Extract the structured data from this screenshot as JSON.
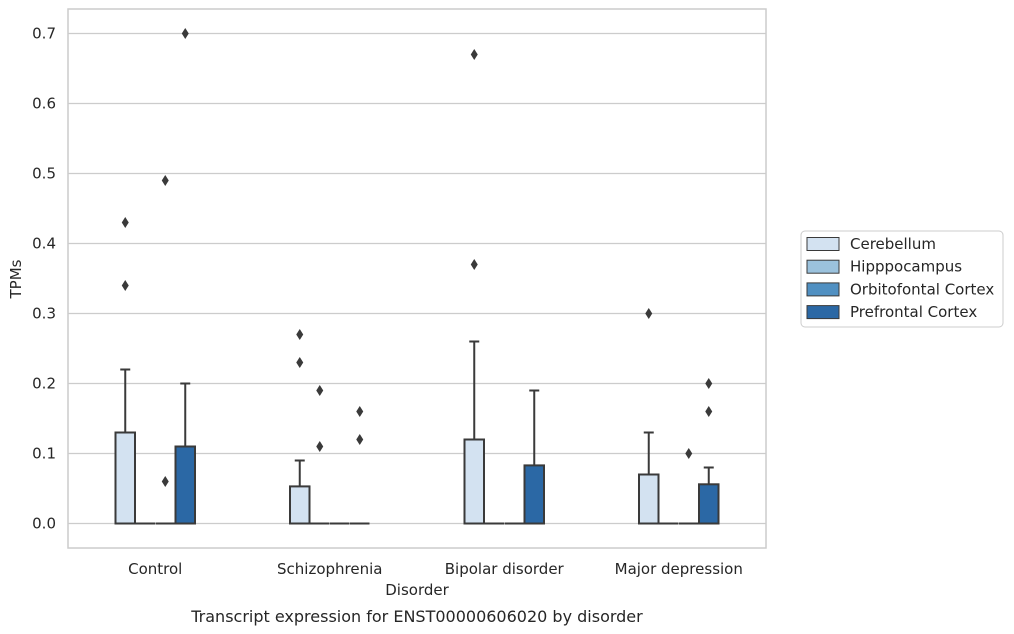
{
  "chart_data": {
    "type": "box",
    "caption": "Transcript expression for ENST00000606020 by disorder",
    "xlabel": "Disorder",
    "ylabel": "TPMs",
    "ylim": [
      -0.035,
      0.735
    ],
    "yticks": [
      0.0,
      0.1,
      0.2,
      0.3,
      0.4,
      0.5,
      0.6,
      0.7
    ],
    "ytick_labels": [
      "0.0",
      "0.1",
      "0.2",
      "0.3",
      "0.4",
      "0.5",
      "0.6",
      "0.7"
    ],
    "grid": "horizontal",
    "legend_position": "right",
    "categories": [
      "Control",
      "Schizophrenia",
      "Bipolar disorder",
      "Major depression"
    ],
    "series": [
      {
        "name": "Cerebellum",
        "color": "#d3e2f1",
        "boxes": [
          {
            "q1": 0.0,
            "median": 0.0,
            "q3": 0.13,
            "whisker_low": 0.0,
            "whisker_high": 0.22,
            "outliers": [
              0.34,
              0.43
            ]
          },
          {
            "q1": 0.0,
            "median": 0.0,
            "q3": 0.053,
            "whisker_low": 0.0,
            "whisker_high": 0.09,
            "outliers": [
              0.23,
              0.27
            ]
          },
          {
            "q1": 0.0,
            "median": 0.0,
            "q3": 0.12,
            "whisker_low": 0.0,
            "whisker_high": 0.26,
            "outliers": [
              0.37,
              0.67
            ]
          },
          {
            "q1": 0.0,
            "median": 0.0,
            "q3": 0.07,
            "whisker_low": 0.0,
            "whisker_high": 0.13,
            "outliers": [
              0.3
            ]
          }
        ]
      },
      {
        "name": "Hipppocampus",
        "color": "#9bc2dd",
        "boxes": [
          {
            "q1": 0.0,
            "median": 0.0,
            "q3": 0.0,
            "whisker_low": 0.0,
            "whisker_high": 0.0,
            "outliers": []
          },
          {
            "q1": 0.0,
            "median": 0.0,
            "q3": 0.0,
            "whisker_low": 0.0,
            "whisker_high": 0.0,
            "outliers": [
              0.11,
              0.19
            ]
          },
          {
            "q1": 0.0,
            "median": 0.0,
            "q3": 0.0,
            "whisker_low": 0.0,
            "whisker_high": 0.0,
            "outliers": []
          },
          {
            "q1": 0.0,
            "median": 0.0,
            "q3": 0.0,
            "whisker_low": 0.0,
            "whisker_high": 0.0,
            "outliers": []
          }
        ]
      },
      {
        "name": "Orbitofontal Cortex",
        "color": "#5090c2",
        "boxes": [
          {
            "q1": 0.0,
            "median": 0.0,
            "q3": 0.0,
            "whisker_low": 0.0,
            "whisker_high": 0.0,
            "outliers": [
              0.06,
              0.49
            ]
          },
          {
            "q1": 0.0,
            "median": 0.0,
            "q3": 0.0,
            "whisker_low": 0.0,
            "whisker_high": 0.0,
            "outliers": []
          },
          {
            "q1": 0.0,
            "median": 0.0,
            "q3": 0.0,
            "whisker_low": 0.0,
            "whisker_high": 0.0,
            "outliers": []
          },
          {
            "q1": 0.0,
            "median": 0.0,
            "q3": 0.0,
            "whisker_low": 0.0,
            "whisker_high": 0.0,
            "outliers": [
              0.1
            ]
          }
        ]
      },
      {
        "name": "Prefrontal Cortex",
        "color": "#2b68a5",
        "boxes": [
          {
            "q1": 0.0,
            "median": 0.0,
            "q3": 0.11,
            "whisker_low": 0.0,
            "whisker_high": 0.2,
            "outliers": [
              0.7
            ]
          },
          {
            "q1": 0.0,
            "median": 0.0,
            "q3": 0.0,
            "whisker_low": 0.0,
            "whisker_high": 0.0,
            "outliers": [
              0.12,
              0.16
            ]
          },
          {
            "q1": 0.0,
            "median": 0.0,
            "q3": 0.083,
            "whisker_low": 0.0,
            "whisker_high": 0.19,
            "outliers": []
          },
          {
            "q1": 0.0,
            "median": 0.0,
            "q3": 0.056,
            "whisker_low": 0.0,
            "whisker_high": 0.08,
            "outliers": [
              0.16,
              0.2
            ]
          }
        ]
      }
    ]
  }
}
